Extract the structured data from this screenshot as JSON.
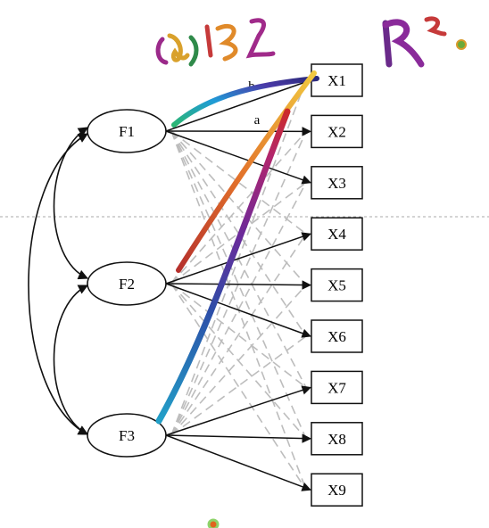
{
  "diagram": {
    "factors": [
      {
        "id": "F1",
        "label": "F1"
      },
      {
        "id": "F2",
        "label": "F2"
      },
      {
        "id": "F3",
        "label": "F3"
      }
    ],
    "indicators": [
      {
        "id": "X1",
        "label": "X1",
        "primary_factor": "F1"
      },
      {
        "id": "X2",
        "label": "X2",
        "primary_factor": "F1"
      },
      {
        "id": "X3",
        "label": "X3",
        "primary_factor": "F1"
      },
      {
        "id": "X4",
        "label": "X4",
        "primary_factor": "F2"
      },
      {
        "id": "X5",
        "label": "X5",
        "primary_factor": "F2"
      },
      {
        "id": "X6",
        "label": "X6",
        "primary_factor": "F2"
      },
      {
        "id": "X7",
        "label": "X7",
        "primary_factor": "F3"
      },
      {
        "id": "X8",
        "label": "X8",
        "primary_factor": "F3"
      },
      {
        "id": "X9",
        "label": "X9",
        "primary_factor": "F3"
      }
    ],
    "path_labels": {
      "f1_x1": "b",
      "f1_x2": "a"
    },
    "colors": {
      "solid_path": "#111111",
      "cross_loading": "#bdbdbd",
      "divider": "#aaaaaa"
    }
  },
  "annotations": {
    "handwritten_top_left": "ω-1Z",
    "handwritten_top_right": "R²."
  }
}
